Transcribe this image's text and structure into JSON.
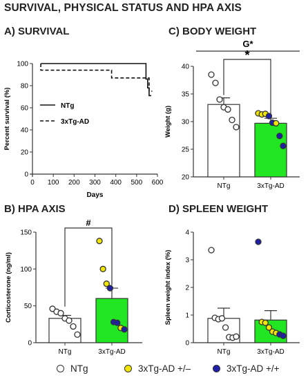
{
  "page_title": "SURVIVAL, PHYSICAL STATUS AND HPA AXIS",
  "colors": {
    "ntg": "#ffffff",
    "het": "#f2e600",
    "hom": "#1f1fa8",
    "bar_tg": "#22e622",
    "stroke": "#333333"
  },
  "legend": [
    {
      "label": "NTg",
      "color": "#ffffff"
    },
    {
      "label": "3xTg-AD +/–",
      "color": "#f2e600"
    },
    {
      "label": "3xTg-AD +/+",
      "color": "#1f1fa8"
    }
  ],
  "chart_data": [
    {
      "id": "survival",
      "panel_title": "A) SURVIVAL",
      "type": "line",
      "xlabel": "Days",
      "ylabel": "Percent survival (%)",
      "xlim": [
        0,
        600
      ],
      "ylim": [
        0,
        100
      ],
      "xticks": [
        0,
        100,
        200,
        300,
        400,
        500,
        600
      ],
      "yticks": [
        0,
        20,
        40,
        60,
        80,
        100
      ],
      "legend_position": "middle-left",
      "series": [
        {
          "name": "NTg",
          "style": "solid",
          "x": [
            40,
            545,
            545,
            553,
            553,
            560,
            560,
            570
          ],
          "y": [
            100,
            100,
            86,
            86,
            78,
            78,
            71,
            71
          ]
        },
        {
          "name": "3xTg-AD",
          "style": "dashed",
          "x": [
            40,
            40,
            380,
            380,
            560,
            560,
            575
          ],
          "y": [
            100,
            94,
            94,
            87,
            87,
            75,
            75
          ]
        }
      ]
    },
    {
      "id": "body-weight",
      "panel_title": "C) BODY WEIGHT",
      "type": "bar",
      "ylabel": "Weight (g)",
      "ylim": [
        20,
        40
      ],
      "yticks": [
        20,
        25,
        30,
        35,
        40
      ],
      "categories": [
        "NTg",
        "3xTg-AD"
      ],
      "values": [
        33.1,
        29.7
      ],
      "errors": [
        1.2,
        0.9
      ],
      "points": [
        [
          {
            "y": 38.5,
            "g": "ntg"
          },
          {
            "y": 37.0,
            "g": "ntg"
          },
          {
            "y": 34.0,
            "g": "ntg"
          },
          {
            "y": 32.6,
            "g": "ntg"
          },
          {
            "y": 32.2,
            "g": "ntg"
          },
          {
            "y": 30.3,
            "g": "ntg"
          },
          {
            "y": 29.0,
            "g": "ntg"
          }
        ],
        [
          {
            "y": 31.5,
            "g": "het"
          },
          {
            "y": 31.3,
            "g": "het"
          },
          {
            "y": 31.4,
            "g": "het"
          },
          {
            "y": 31.0,
            "g": "hom"
          },
          {
            "y": 29.8,
            "g": "hom"
          },
          {
            "y": 29.7,
            "g": "het"
          },
          {
            "y": 27.4,
            "g": "hom"
          },
          {
            "y": 25.6,
            "g": "hom"
          }
        ]
      ],
      "annotations": [
        {
          "text": "G*",
          "kind": "overall"
        },
        {
          "text": "*",
          "kind": "pair"
        }
      ]
    },
    {
      "id": "hpa-axis",
      "panel_title": "B) HPA AXIS",
      "type": "bar",
      "ylabel": "Corticosterone (ng/ml)",
      "ylim": [
        0,
        150
      ],
      "yticks": [
        0,
        50,
        100,
        150
      ],
      "categories": [
        "NTg",
        "3xTg-AD"
      ],
      "values": [
        33,
        60
      ],
      "errors": [
        4,
        14
      ],
      "points": [
        [
          {
            "y": 46,
            "g": "ntg"
          },
          {
            "y": 42,
            "g": "ntg"
          },
          {
            "y": 40,
            "g": "ntg"
          },
          {
            "y": 33,
            "g": "ntg"
          },
          {
            "y": 30,
            "g": "ntg"
          },
          {
            "y": 22,
            "g": "ntg"
          },
          {
            "y": 11,
            "g": "ntg"
          }
        ],
        [
          {
            "y": 138,
            "g": "het"
          },
          {
            "y": 100,
            "g": "het"
          },
          {
            "y": 80,
            "g": "het"
          },
          {
            "y": 74,
            "g": "hom"
          },
          {
            "y": 28,
            "g": "hom"
          },
          {
            "y": 27,
            "g": "hom"
          },
          {
            "y": 20,
            "g": "het"
          },
          {
            "y": 18,
            "g": "hom"
          }
        ]
      ],
      "annotations": [
        {
          "text": "#",
          "kind": "pair"
        }
      ]
    },
    {
      "id": "spleen-weight",
      "panel_title": "D) SPLEEN WEIGHT",
      "type": "bar",
      "ylabel": "Spleen weight index (%)",
      "ylim": [
        0,
        4
      ],
      "yticks": [
        0,
        1,
        2,
        3,
        4
      ],
      "categories": [
        "NTg",
        "3xTg-AD"
      ],
      "values": [
        0.88,
        0.82
      ],
      "errors": [
        0.37,
        0.34
      ],
      "points": [
        [
          {
            "y": 3.35,
            "g": "ntg"
          },
          {
            "y": 0.9,
            "g": "ntg"
          },
          {
            "y": 0.85,
            "g": "ntg"
          },
          {
            "y": 0.88,
            "g": "ntg"
          },
          {
            "y": 0.55,
            "g": "ntg"
          },
          {
            "y": 0.2,
            "g": "ntg"
          },
          {
            "y": 0.18,
            "g": "ntg"
          },
          {
            "y": 0.22,
            "g": "ntg"
          }
        ],
        [
          {
            "y": 3.65,
            "g": "hom"
          },
          {
            "y": 0.75,
            "g": "het"
          },
          {
            "y": 0.72,
            "g": "het"
          },
          {
            "y": 0.55,
            "g": "het"
          },
          {
            "y": 0.4,
            "g": "het"
          },
          {
            "y": 0.35,
            "g": "het"
          },
          {
            "y": 0.3,
            "g": "hom"
          },
          {
            "y": 0.25,
            "g": "hom"
          }
        ]
      ],
      "annotations": []
    }
  ]
}
